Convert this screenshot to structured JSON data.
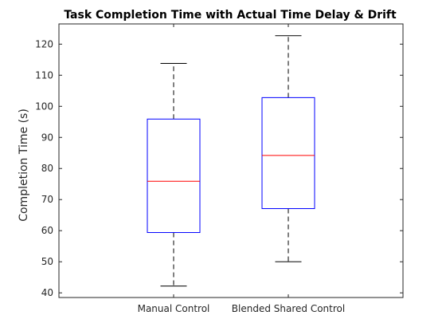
{
  "chart_data": {
    "type": "boxplot",
    "title": "Task Completion Time with Actual Time Delay & Drift",
    "xlabel": "",
    "ylabel": "Completion Time (s)",
    "ylim": [
      38.5,
      126.5
    ],
    "yticks": [
      40,
      50,
      60,
      70,
      80,
      90,
      100,
      110,
      120
    ],
    "grid": false,
    "categories": [
      "Manual Control",
      "Blended Shared Control"
    ],
    "boxes": [
      {
        "category": "Manual Control",
        "whisker_low": 42.2,
        "q1": 59.4,
        "median": 75.9,
        "q3": 95.9,
        "whisker_high": 113.8
      },
      {
        "category": "Blended Shared Control",
        "whisker_low": 50.0,
        "q1": 67.1,
        "median": 84.2,
        "q3": 102.8,
        "whisker_high": 122.7
      }
    ],
    "colors": {
      "box": "#0000ff",
      "median": "#ff0000",
      "whisker": "#000000",
      "axis": "#262626"
    }
  }
}
